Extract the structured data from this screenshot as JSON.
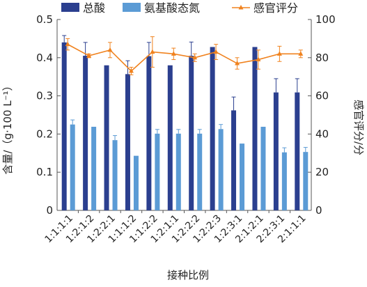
{
  "chart_data": {
    "type": "bar",
    "title": "",
    "xlabel": "接种比例",
    "ylabel": "含量/（g·100 L⁻¹）",
    "y2label": "感官评分/分",
    "ylim": [
      0,
      0.5
    ],
    "yticks": [
      "0",
      "0.1",
      "0.2",
      "0.3",
      "0.4",
      "0.5"
    ],
    "y2lim": [
      0,
      100
    ],
    "y2ticks": [
      "0",
      "20",
      "40",
      "60",
      "80",
      "100"
    ],
    "grid": false,
    "legend_position": "top",
    "categories": [
      "1:1:1:1",
      "1:2:1:2",
      "1:2:2:1",
      "1:1:1:2",
      "1:1:2:2",
      "1:2:1:1",
      "1:2:2:2",
      "1:2:2:3",
      "1:2:3:1",
      "2:1:2:1",
      "2:2:3:1",
      "2:1:1:1"
    ],
    "series": [
      {
        "name": "总酸",
        "kind": "bar",
        "axis": "left",
        "color": "#2b3f8f",
        "values": [
          0.44,
          0.405,
          0.38,
          0.357,
          0.404,
          0.38,
          0.405,
          0.428,
          0.262,
          0.428,
          0.309,
          0.309
        ],
        "errors": [
          0.018,
          0.035,
          0.0,
          0.035,
          0.036,
          0.0,
          0.036,
          0.0,
          0.035,
          0.0,
          0.036,
          0.036
        ]
      },
      {
        "name": "氨基酸态氮",
        "kind": "bar",
        "axis": "left",
        "color": "#5b9bd5",
        "values": [
          0.225,
          0.219,
          0.184,
          0.143,
          0.201,
          0.201,
          0.201,
          0.213,
          0.175,
          0.219,
          0.152,
          0.153
        ],
        "errors": [
          0.012,
          0.0,
          0.012,
          0.0,
          0.011,
          0.011,
          0.011,
          0.012,
          0.0,
          0.0,
          0.012,
          0.012
        ]
      },
      {
        "name": "感官评分",
        "kind": "line",
        "axis": "right",
        "color": "#f0821e",
        "values": [
          87,
          81,
          84,
          73,
          83,
          82,
          80,
          83,
          77,
          79,
          82,
          82
        ],
        "errors": [
          3,
          1,
          4,
          2,
          8,
          3,
          2,
          4,
          3,
          5,
          4,
          2
        ]
      }
    ]
  }
}
